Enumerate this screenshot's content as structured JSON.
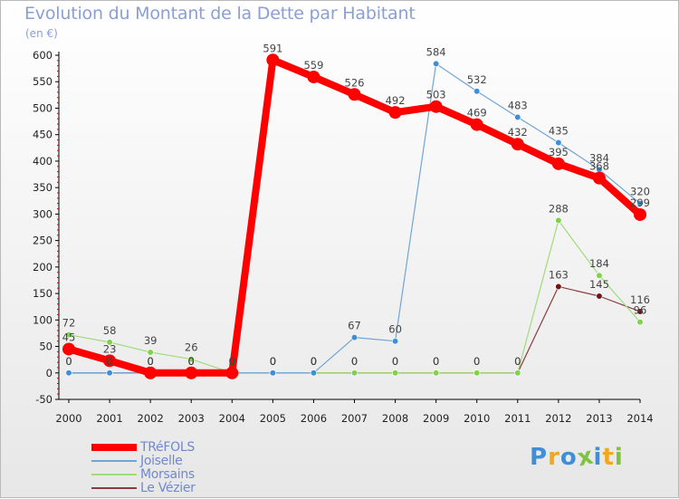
{
  "title": "Evolution du Montant de la Dette par Habitant",
  "unit_label": "(en €)",
  "chart_data": {
    "type": "line",
    "title": "Evolution du Montant de la Dette par Habitant",
    "ylabel": "(en €)",
    "xlabel": "",
    "ylim": [
      -50,
      600
    ],
    "yticks": [
      -50,
      0,
      50,
      100,
      150,
      200,
      250,
      300,
      350,
      400,
      450,
      500,
      550,
      600
    ],
    "categories": [
      "2000",
      "2001",
      "2002",
      "2003",
      "2004",
      "2005",
      "2006",
      "2007",
      "2008",
      "2009",
      "2010",
      "2011",
      "2012",
      "2013",
      "2014"
    ],
    "grid": false,
    "legend_position": "bottom-left",
    "series": [
      {
        "name": "TRéFOLS",
        "color": "#ff0000",
        "width": 8,
        "marker": 7,
        "values": [
          45,
          23,
          0,
          0,
          0,
          591,
          559,
          526,
          492,
          503,
          469,
          432,
          395,
          368,
          299
        ]
      },
      {
        "name": "Joiselle",
        "color": "#6fa5d6",
        "width": 1.2,
        "marker": 3.3,
        "marker_color": "#3f8fd8",
        "values": [
          0,
          0,
          0,
          0,
          0,
          0,
          0,
          67,
          60,
          584,
          532,
          483,
          435,
          384,
          320
        ]
      },
      {
        "name": "Morsains",
        "color": "#9fdc7a",
        "width": 1.2,
        "marker": 3.3,
        "marker_color": "#7fd24a",
        "values": [
          72,
          58,
          39,
          26,
          0,
          0,
          0,
          0,
          0,
          0,
          0,
          0,
          288,
          184,
          96
        ]
      },
      {
        "name": "Le Vézier",
        "color": "#8b3b3b",
        "width": 1.2,
        "marker": 3.3,
        "marker_color": "#6e1616",
        "values": [
          0,
          0,
          0,
          0,
          0,
          0,
          0,
          0,
          0,
          0,
          0,
          0,
          163,
          145,
          116
        ]
      }
    ],
    "data_labels": [
      {
        "series": 0,
        "labels": [
          "45",
          "23",
          "0",
          "0",
          "0",
          "591",
          "559",
          "526",
          "492",
          "503",
          "469",
          "432",
          "395",
          "368",
          "299"
        ]
      },
      {
        "series": 1,
        "labels": [
          "0",
          "0",
          "0",
          "0",
          "0",
          "0",
          "0",
          "67",
          "60",
          "584",
          "532",
          "483",
          "435",
          "384",
          "320"
        ]
      },
      {
        "series": 2,
        "labels": [
          "72",
          "58",
          "39",
          "26",
          "0",
          "0",
          "0",
          "0",
          "0",
          "0",
          "0",
          "0",
          "288",
          "184",
          "96"
        ]
      },
      {
        "series": 3,
        "labels": [
          "0",
          "0",
          "0",
          "0",
          "0",
          "0",
          "0",
          "0",
          "0",
          "0",
          "0",
          "0",
          "163",
          "145",
          "116"
        ]
      }
    ]
  },
  "legend": [
    {
      "label": "TRéFOLS",
      "color": "#ff0000"
    },
    {
      "label": "Joiselle",
      "color": "#6fa5d6"
    },
    {
      "label": "Morsains",
      "color": "#9fdc7a"
    },
    {
      "label": "Le Vézier",
      "color": "#8b3b3b"
    }
  ],
  "logo": {
    "text": "Proxiti",
    "letters": [
      {
        "char": "P",
        "color": "#3f8fd8"
      },
      {
        "char": "r",
        "color": "#f2a81d"
      },
      {
        "char": "o",
        "color": "#3f8fd8"
      },
      {
        "char": "x",
        "color": "#7fc241"
      },
      {
        "char": "i",
        "color": "#3f8fd8"
      },
      {
        "char": "t",
        "color": "#f2a81d"
      },
      {
        "char": "i",
        "color": "#7fc241"
      }
    ]
  }
}
